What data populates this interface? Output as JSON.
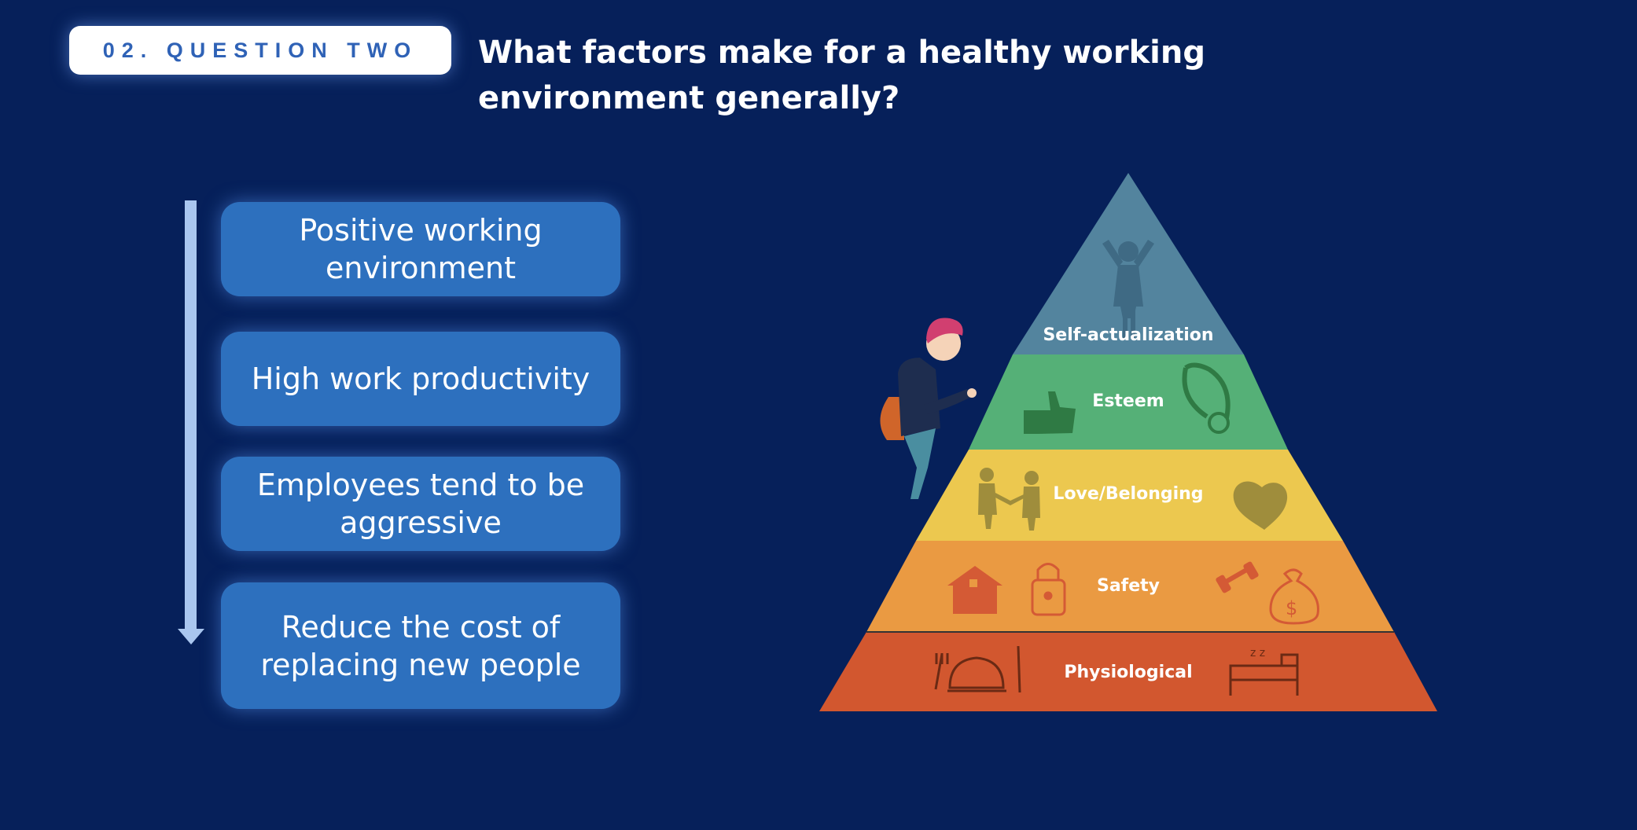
{
  "header": {
    "badge": "02. QUESTION TWO",
    "title": "What factors make for a healthy working environment generally?"
  },
  "factors": [
    "Positive working environment",
    "High work productivity",
    "Employees tend to be aggressive",
    "Reduce the cost of replacing new people"
  ],
  "pyramid": {
    "levels": [
      {
        "label": "Self-actualization",
        "color": "#53849e"
      },
      {
        "label": "Esteem",
        "color": "#55b077"
      },
      {
        "label": "Love/Belonging",
        "color": "#ecc84f"
      },
      {
        "label": "Safety",
        "color": "#ea9a42"
      },
      {
        "label": "Physiological",
        "color": "#d2572f"
      }
    ]
  },
  "colors": {
    "background": "#06205a",
    "card": "#2d70be",
    "badge_text": "#2f62b6",
    "arrow": "#a9c6ef"
  },
  "icons": [
    "person-cheering-icon",
    "thumbs-up-icon",
    "medal-icon",
    "people-handshake-icon",
    "heart-icon",
    "house-icon",
    "lock-icon",
    "dumbbell-icon",
    "money-bag-icon",
    "dining-icon",
    "bed-icon",
    "climber-illustration"
  ]
}
